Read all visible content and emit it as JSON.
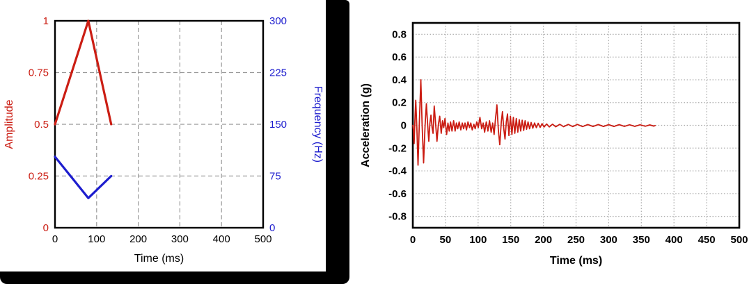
{
  "figure": {
    "description": "Two line charts: sweep amplitude/frequency profile (left) and shaker acceleration time history (right)",
    "background": "#ffffff",
    "frame_color": "#000000"
  },
  "colors": {
    "red_series": "#cb1d13",
    "blue_series": "#1d1dce",
    "axis_black": "#000000",
    "grid_left": "#999999",
    "grid_right": "#aaaaaa"
  },
  "chart_data": [
    {
      "name": "sweep-profile-chart",
      "type": "line",
      "title": "",
      "xlabel": "Time (ms)",
      "xlim": [
        0,
        500
      ],
      "x_ticks": [
        0,
        100,
        200,
        300,
        400,
        500
      ],
      "grid": "dashed",
      "left_axis": {
        "label": "Amplitude",
        "color": "#cb1d13",
        "lim": [
          0,
          1
        ],
        "ticks": [
          0,
          0.25,
          0.5,
          0.75,
          1
        ]
      },
      "right_axis": {
        "label": "Frequency (Hz)",
        "color": "#1d1dce",
        "lim": [
          0,
          300
        ],
        "ticks": [
          0,
          75,
          150,
          225,
          300
        ]
      },
      "series": [
        {
          "name": "amplitude",
          "axis": "left",
          "color": "#cb1d13",
          "width": 3.2,
          "points": [
            [
              0,
              0.5
            ],
            [
              80,
              1.0
            ],
            [
              135,
              0.5
            ]
          ]
        },
        {
          "name": "frequency",
          "axis": "right",
          "color": "#1d1dce",
          "width": 3.2,
          "points": [
            [
              0,
              103
            ],
            [
              80,
              43
            ],
            [
              135,
              75
            ]
          ]
        }
      ]
    },
    {
      "name": "acceleration-chart",
      "type": "line",
      "title": "",
      "xlabel": "Time (ms)",
      "ylabel": "Acceleration (g)",
      "xlim": [
        0,
        500
      ],
      "ylim": [
        -0.9,
        0.9
      ],
      "x_ticks": [
        0,
        50,
        100,
        150,
        200,
        250,
        300,
        350,
        400,
        450,
        500
      ],
      "y_ticks": [
        0.8,
        0.6,
        0.4,
        0.2,
        0,
        -0.2,
        -0.4,
        -0.6,
        -0.8
      ],
      "grid": "dotted",
      "series": [
        {
          "name": "acceleration",
          "color": "#cb1d13",
          "width": 1.8,
          "points": [
            [
              0,
              0
            ],
            [
              1,
              -0.04
            ],
            [
              2,
              -0.16
            ],
            [
              3.2,
              0.04
            ],
            [
              4.5,
              0.22
            ],
            [
              6.2,
              -0.02
            ],
            [
              8,
              -0.35
            ],
            [
              10,
              0.02
            ],
            [
              12.3,
              0.4
            ],
            [
              14.3,
              0
            ],
            [
              16.5,
              -0.33
            ],
            [
              18.8,
              0
            ],
            [
              20.8,
              0.19
            ],
            [
              22.8,
              0
            ],
            [
              24.5,
              -0.14
            ],
            [
              26.2,
              0.02
            ],
            [
              27.8,
              0.09
            ],
            [
              29.5,
              -0.02
            ],
            [
              31,
              -0.07
            ],
            [
              32.8,
              0.17
            ],
            [
              35,
              0.01
            ],
            [
              37,
              -0.14
            ],
            [
              39.2,
              0.01
            ],
            [
              41.2,
              0.08
            ],
            [
              43.5,
              -0.07
            ],
            [
              45.5,
              0.04
            ],
            [
              47.3,
              -0.02
            ],
            [
              49.3,
              0.06
            ],
            [
              51.8,
              -0.08
            ],
            [
              53.8,
              0.02
            ],
            [
              55.8,
              -0.05
            ],
            [
              57.8,
              0.03
            ],
            [
              60,
              -0.05
            ],
            [
              62.5,
              0.04
            ],
            [
              64.8,
              -0.05
            ],
            [
              66.8,
              0.02
            ],
            [
              68.8,
              -0.03
            ],
            [
              71,
              0.03
            ],
            [
              73.5,
              -0.04
            ],
            [
              75.8,
              0.02
            ],
            [
              77.8,
              -0.03
            ],
            [
              80,
              0.02
            ],
            [
              82.2,
              -0.04
            ],
            [
              84.5,
              0.03
            ],
            [
              86.8,
              -0.02
            ],
            [
              88.8,
              0.02
            ],
            [
              91,
              -0.04
            ],
            [
              93.5,
              0.01
            ],
            [
              95.5,
              -0.03
            ],
            [
              98,
              0.03
            ],
            [
              100.2,
              -0.02
            ],
            [
              102.8,
              0.07
            ],
            [
              105.5,
              -0.03
            ],
            [
              107.8,
              0.02
            ],
            [
              110,
              -0.06
            ],
            [
              112.5,
              0.03
            ],
            [
              115,
              -0.05
            ],
            [
              117.5,
              0.04
            ],
            [
              120,
              -0.06
            ],
            [
              122.3,
              0.02
            ],
            [
              124.5,
              -0.08
            ],
            [
              126.5,
              0.05
            ],
            [
              128.8,
              0.18
            ],
            [
              131,
              -0.04
            ],
            [
              133.2,
              -0.17
            ],
            [
              135.5,
              0.03
            ],
            [
              137.3,
              0.12
            ],
            [
              139.3,
              -0.03
            ],
            [
              141.2,
              -0.12
            ],
            [
              143.2,
              0.03
            ],
            [
              145,
              0.1
            ],
            [
              147.2,
              -0.09
            ],
            [
              149.5,
              0.08
            ],
            [
              151.8,
              -0.08
            ],
            [
              154,
              0.07
            ],
            [
              156.2,
              -0.07
            ],
            [
              158.5,
              0.06
            ],
            [
              160.8,
              -0.06
            ],
            [
              163,
              0.05
            ],
            [
              165.2,
              -0.05
            ],
            [
              167.5,
              0.045
            ],
            [
              169.8,
              -0.045
            ],
            [
              172,
              0.04
            ],
            [
              174.2,
              -0.035
            ],
            [
              176.5,
              0.03
            ],
            [
              178.8,
              -0.03
            ],
            [
              181.2,
              0.025
            ],
            [
              183.8,
              -0.025
            ],
            [
              186.5,
              0.02
            ],
            [
              189.2,
              -0.02
            ],
            [
              192,
              0.018
            ],
            [
              195,
              -0.018
            ],
            [
              198,
              0.015
            ],
            [
              201,
              -0.015
            ],
            [
              205,
              0.012
            ],
            [
              209,
              -0.014
            ],
            [
              214,
              0.01
            ],
            [
              219,
              -0.013
            ],
            [
              225,
              0.009
            ],
            [
              231,
              -0.012
            ],
            [
              238,
              0.008
            ],
            [
              245,
              -0.011
            ],
            [
              252,
              0.008
            ],
            [
              260,
              -0.011
            ],
            [
              268,
              0.007
            ],
            [
              276,
              -0.01
            ],
            [
              284,
              0.007
            ],
            [
              292,
              -0.01
            ],
            [
              300,
              0.006
            ],
            [
              308,
              -0.01
            ],
            [
              316,
              0.006
            ],
            [
              324,
              -0.009
            ],
            [
              332,
              0.005
            ],
            [
              340,
              -0.009
            ],
            [
              348,
              0.005
            ],
            [
              356,
              -0.008
            ],
            [
              363,
              0.004
            ],
            [
              369,
              -0.007
            ],
            [
              371,
              -0.002
            ]
          ]
        }
      ]
    }
  ]
}
